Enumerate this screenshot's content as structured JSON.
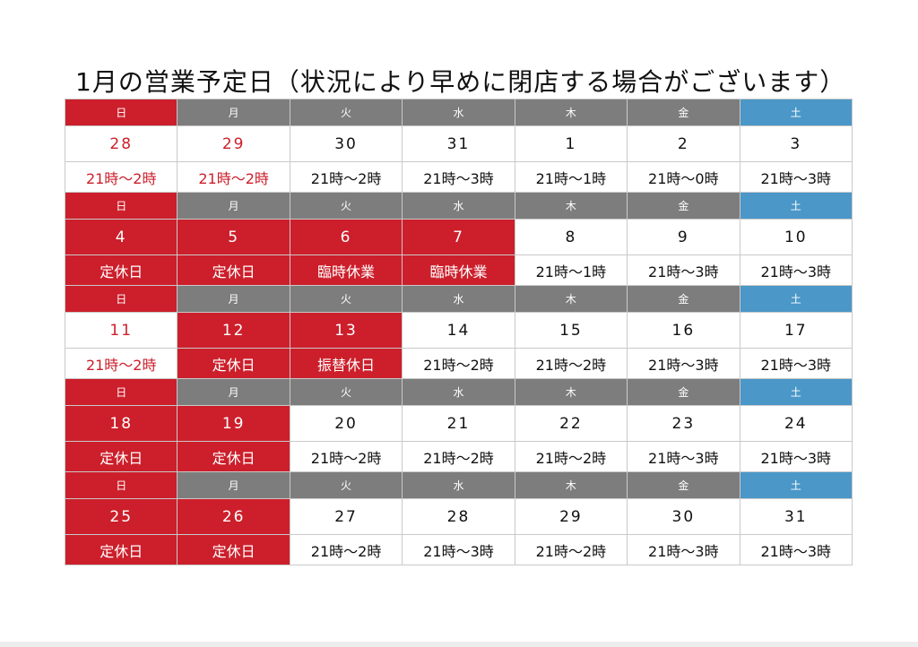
{
  "title": "1月の営業予定日（状況により早めに閉店する場合がございます）",
  "colors": {
    "sunday_header": "#cc1f2b",
    "weekday_header": "#7d7d7d",
    "saturday_header": "#4a97c8",
    "closed_fill": "#cc1f2b",
    "red_text": "#cc1f2b"
  },
  "weekdays": [
    "日",
    "月",
    "火",
    "水",
    "木",
    "金",
    "土"
  ],
  "weeks": [
    {
      "days": [
        {
          "date": "28",
          "hours": "21時〜2時",
          "style": "red"
        },
        {
          "date": "29",
          "hours": "21時〜2時",
          "style": "red"
        },
        {
          "date": "30",
          "hours": "21時〜2時",
          "style": "plain"
        },
        {
          "date": "31",
          "hours": "21時〜3時",
          "style": "plain"
        },
        {
          "date": "1",
          "hours": "21時〜1時",
          "style": "plain"
        },
        {
          "date": "2",
          "hours": "21時〜0時",
          "style": "plain"
        },
        {
          "date": "3",
          "hours": "21時〜3時",
          "style": "plain"
        }
      ]
    },
    {
      "days": [
        {
          "date": "4",
          "hours": "定休日",
          "style": "closed"
        },
        {
          "date": "5",
          "hours": "定休日",
          "style": "closed"
        },
        {
          "date": "6",
          "hours": "臨時休業",
          "style": "closed"
        },
        {
          "date": "7",
          "hours": "臨時休業",
          "style": "closed"
        },
        {
          "date": "8",
          "hours": "21時〜1時",
          "style": "plain"
        },
        {
          "date": "9",
          "hours": "21時〜3時",
          "style": "plain"
        },
        {
          "date": "10",
          "hours": "21時〜3時",
          "style": "plain"
        }
      ]
    },
    {
      "days": [
        {
          "date": "11",
          "hours": "21時〜2時",
          "style": "red"
        },
        {
          "date": "12",
          "hours": "定休日",
          "style": "closed"
        },
        {
          "date": "13",
          "hours": "振替休日",
          "style": "closed"
        },
        {
          "date": "14",
          "hours": "21時〜2時",
          "style": "plain"
        },
        {
          "date": "15",
          "hours": "21時〜2時",
          "style": "plain"
        },
        {
          "date": "16",
          "hours": "21時〜3時",
          "style": "plain"
        },
        {
          "date": "17",
          "hours": "21時〜3時",
          "style": "plain"
        }
      ]
    },
    {
      "days": [
        {
          "date": "18",
          "hours": "定休日",
          "style": "closed"
        },
        {
          "date": "19",
          "hours": "定休日",
          "style": "closed"
        },
        {
          "date": "20",
          "hours": "21時〜2時",
          "style": "plain"
        },
        {
          "date": "21",
          "hours": "21時〜2時",
          "style": "plain"
        },
        {
          "date": "22",
          "hours": "21時〜2時",
          "style": "plain"
        },
        {
          "date": "23",
          "hours": "21時〜3時",
          "style": "plain"
        },
        {
          "date": "24",
          "hours": "21時〜3時",
          "style": "plain"
        }
      ]
    },
    {
      "days": [
        {
          "date": "25",
          "hours": "定休日",
          "style": "closed"
        },
        {
          "date": "26",
          "hours": "定休日",
          "style": "closed"
        },
        {
          "date": "27",
          "hours": "21時〜2時",
          "style": "plain"
        },
        {
          "date": "28",
          "hours": "21時〜3時",
          "style": "plain"
        },
        {
          "date": "29",
          "hours": "21時〜2時",
          "style": "plain"
        },
        {
          "date": "30",
          "hours": "21時〜3時",
          "style": "plain"
        },
        {
          "date": "31",
          "hours": "21時〜3時",
          "style": "plain"
        }
      ]
    }
  ]
}
